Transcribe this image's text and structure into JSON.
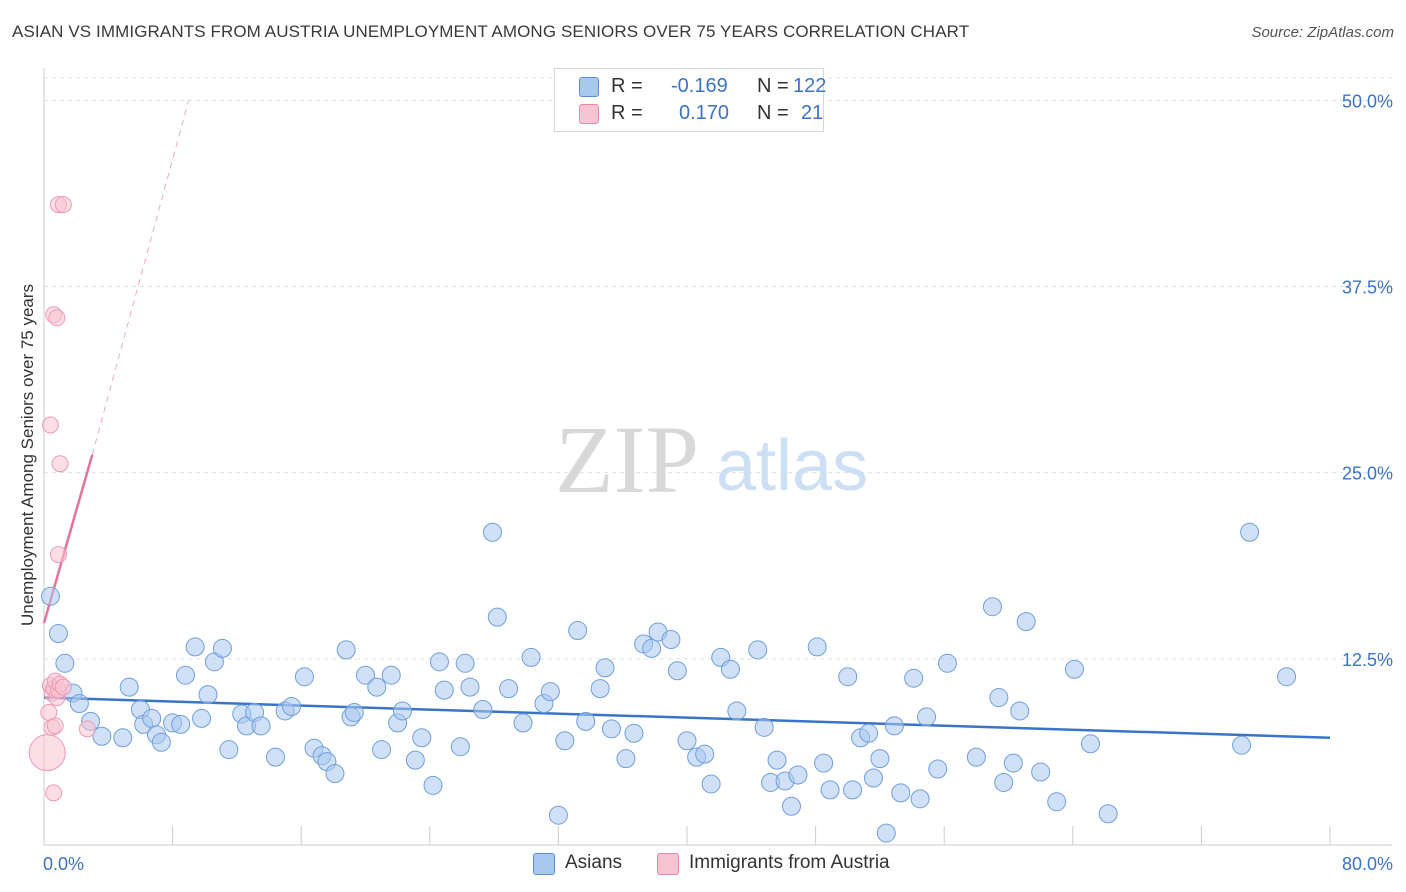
{
  "title": "ASIAN VS IMMIGRANTS FROM AUSTRIA UNEMPLOYMENT AMONG SENIORS OVER 75 YEARS CORRELATION CHART",
  "source": "Source: ZipAtlas.com",
  "watermark": {
    "zip": "ZIP",
    "atlas": "atlas"
  },
  "legend": {
    "r_label": "R =",
    "n_label": "N =",
    "rows": [
      {
        "r": "-0.169",
        "n": "122",
        "color": "#a9c8f0",
        "border": "#5a8fd6"
      },
      {
        "r": "0.170",
        "n": "21",
        "color": "#f8c3d2",
        "border": "#e88aa6"
      }
    ]
  },
  "bottom_legend": [
    {
      "label": "Asians",
      "color": "#a9c8f0",
      "border": "#5a8fd6"
    },
    {
      "label": "Immigrants from Austria",
      "color": "#f8c3d2",
      "border": "#e88aa6"
    }
  ],
  "chart_data": {
    "type": "scatter",
    "title": "ASIAN VS IMMIGRANTS FROM AUSTRIA UNEMPLOYMENT AMONG SENIORS OVER 75 YEARS CORRELATION CHART",
    "xlabel": "",
    "ylabel": "Unemployment Among Seniors over 75 years",
    "xlim": [
      0,
      80
    ],
    "ylim": [
      0,
      51.5
    ],
    "x_tick_labels": [
      "0.0%",
      "80.0%"
    ],
    "y_ticks": [
      {
        "value": 12.5,
        "label": "12.5%"
      },
      {
        "value": 25.0,
        "label": "25.0%"
      },
      {
        "value": 37.5,
        "label": "37.5%"
      },
      {
        "value": 50.0,
        "label": "50.0%"
      }
    ],
    "colors": {
      "asians": "#3a74c8",
      "austria": "#e8729a",
      "tick_label": "#3a74c8"
    },
    "series": [
      {
        "name": "Asians",
        "trend": {
          "x": [
            0,
            80
          ],
          "y": [
            9.9,
            7.2
          ]
        },
        "points": [
          [
            0.4,
            16.7
          ],
          [
            0.9,
            14.2
          ],
          [
            1.3,
            12.2
          ],
          [
            1.8,
            10.2
          ],
          [
            2.2,
            9.5
          ],
          [
            2.9,
            8.3
          ],
          [
            3.6,
            7.3
          ],
          [
            4.9,
            7.2
          ],
          [
            5.3,
            10.6
          ],
          [
            6.0,
            9.1
          ],
          [
            6.2,
            8.1
          ],
          [
            6.7,
            8.5
          ],
          [
            7.0,
            7.4
          ],
          [
            7.3,
            6.9
          ],
          [
            8.0,
            8.2
          ],
          [
            8.5,
            8.1
          ],
          [
            8.8,
            11.4
          ],
          [
            9.4,
            13.3
          ],
          [
            9.8,
            8.5
          ],
          [
            10.2,
            10.1
          ],
          [
            10.6,
            12.3
          ],
          [
            11.1,
            13.2
          ],
          [
            11.5,
            6.4
          ],
          [
            12.3,
            8.8
          ],
          [
            12.6,
            8.0
          ],
          [
            13.1,
            8.9
          ],
          [
            13.5,
            8.0
          ],
          [
            14.4,
            5.9
          ],
          [
            15.0,
            9.0
          ],
          [
            15.4,
            9.3
          ],
          [
            16.2,
            11.3
          ],
          [
            16.8,
            6.5
          ],
          [
            17.3,
            6.0
          ],
          [
            17.6,
            5.6
          ],
          [
            18.1,
            4.8
          ],
          [
            18.8,
            13.1
          ],
          [
            19.1,
            8.6
          ],
          [
            19.3,
            8.9
          ],
          [
            20.0,
            11.4
          ],
          [
            20.7,
            10.6
          ],
          [
            21.6,
            11.4
          ],
          [
            22.0,
            8.2
          ],
          [
            22.3,
            9.0
          ],
          [
            21.0,
            6.4
          ],
          [
            23.1,
            5.7
          ],
          [
            23.5,
            7.2
          ],
          [
            24.2,
            4.0
          ],
          [
            24.6,
            12.3
          ],
          [
            24.9,
            10.4
          ],
          [
            25.9,
            6.6
          ],
          [
            26.2,
            12.2
          ],
          [
            26.5,
            10.6
          ],
          [
            27.3,
            9.1
          ],
          [
            27.9,
            21.0
          ],
          [
            28.2,
            15.3
          ],
          [
            28.9,
            10.5
          ],
          [
            29.8,
            8.2
          ],
          [
            30.3,
            12.6
          ],
          [
            31.1,
            9.5
          ],
          [
            31.5,
            10.3
          ],
          [
            32.0,
            2.0
          ],
          [
            32.4,
            7.0
          ],
          [
            33.2,
            14.4
          ],
          [
            33.7,
            8.3
          ],
          [
            34.6,
            10.5
          ],
          [
            34.9,
            11.9
          ],
          [
            35.3,
            7.8
          ],
          [
            36.2,
            5.8
          ],
          [
            36.7,
            7.5
          ],
          [
            37.3,
            13.5
          ],
          [
            37.8,
            13.2
          ],
          [
            38.2,
            14.3
          ],
          [
            39.0,
            13.8
          ],
          [
            39.4,
            11.7
          ],
          [
            40.0,
            7.0
          ],
          [
            40.6,
            5.9
          ],
          [
            41.1,
            6.1
          ],
          [
            41.5,
            4.1
          ],
          [
            42.1,
            12.6
          ],
          [
            42.7,
            11.8
          ],
          [
            43.1,
            9.0
          ],
          [
            44.4,
            13.1
          ],
          [
            44.8,
            7.9
          ],
          [
            45.2,
            4.2
          ],
          [
            45.6,
            5.7
          ],
          [
            46.1,
            4.3
          ],
          [
            46.5,
            2.6
          ],
          [
            46.9,
            4.7
          ],
          [
            48.1,
            13.3
          ],
          [
            48.5,
            5.5
          ],
          [
            48.9,
            3.7
          ],
          [
            50.0,
            11.3
          ],
          [
            50.3,
            3.7
          ],
          [
            50.8,
            7.2
          ],
          [
            51.3,
            7.5
          ],
          [
            51.6,
            4.5
          ],
          [
            52.0,
            5.8
          ],
          [
            52.4,
            0.8
          ],
          [
            52.9,
            8.0
          ],
          [
            53.3,
            3.5
          ],
          [
            54.1,
            11.2
          ],
          [
            54.5,
            3.1
          ],
          [
            54.9,
            8.6
          ],
          [
            55.6,
            5.1
          ],
          [
            56.2,
            12.2
          ],
          [
            58.0,
            5.9
          ],
          [
            59.0,
            16.0
          ],
          [
            59.4,
            9.9
          ],
          [
            59.7,
            4.2
          ],
          [
            60.3,
            5.5
          ],
          [
            60.7,
            9.0
          ],
          [
            61.1,
            15.0
          ],
          [
            62.0,
            4.9
          ],
          [
            63.0,
            2.9
          ],
          [
            64.1,
            11.8
          ],
          [
            65.1,
            6.8
          ],
          [
            66.2,
            2.1
          ],
          [
            75.0,
            21.0
          ],
          [
            77.3,
            11.3
          ],
          [
            74.5,
            6.7
          ]
        ]
      },
      {
        "name": "Immigrants from Austria",
        "trend": {
          "x": [
            0,
            3.0
          ],
          "y": [
            14.9,
            26.2
          ],
          "dashed_to": [
            9.0,
            50.0
          ]
        },
        "points": [
          [
            0.2,
            6.2
          ],
          [
            0.4,
            10.7
          ],
          [
            0.5,
            10.2
          ],
          [
            0.6,
            10.5
          ],
          [
            0.7,
            11.0
          ],
          [
            0.8,
            9.9
          ],
          [
            0.9,
            10.4
          ],
          [
            1.0,
            10.8
          ],
          [
            1.2,
            10.6
          ],
          [
            0.3,
            8.9
          ],
          [
            0.5,
            7.9
          ],
          [
            0.7,
            8.0
          ],
          [
            0.4,
            28.2
          ],
          [
            0.9,
            43.0
          ],
          [
            1.2,
            43.0
          ],
          [
            0.6,
            35.6
          ],
          [
            0.8,
            35.4
          ],
          [
            1.0,
            25.6
          ],
          [
            0.9,
            19.5
          ],
          [
            2.7,
            7.8
          ],
          [
            0.6,
            3.5
          ]
        ]
      }
    ]
  }
}
